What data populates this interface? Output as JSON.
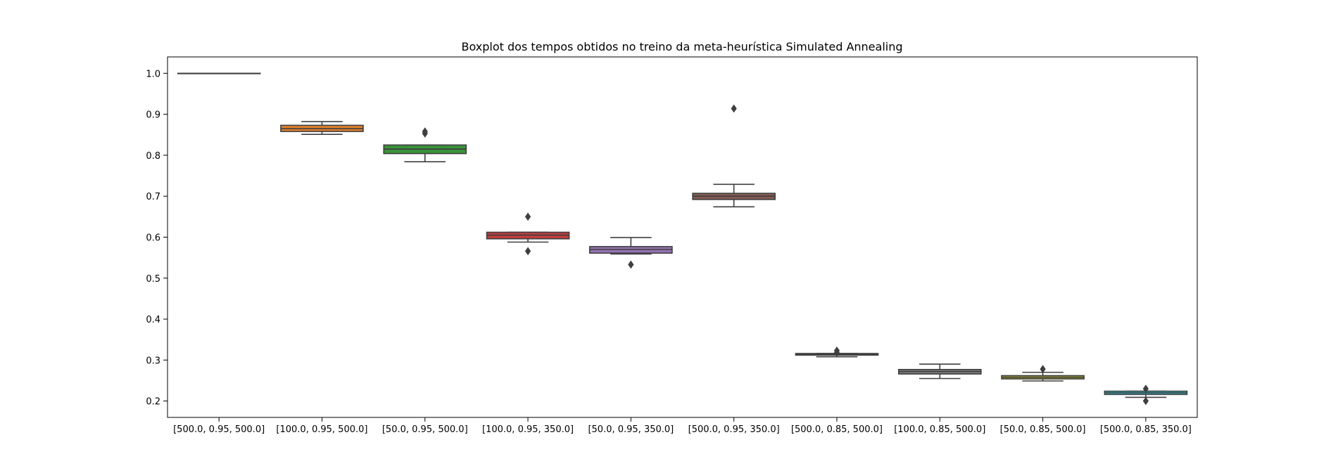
{
  "chart_data": {
    "type": "box",
    "title": "Boxplot dos tempos obtidos no treino da meta-heurística Simulated Annealing",
    "xlabel": "",
    "ylabel": "",
    "ylim": [
      0.16,
      1.04
    ],
    "yticks": [
      "0.2",
      "0.3",
      "0.4",
      "0.5",
      "0.6",
      "0.7",
      "0.8",
      "0.9",
      "1.0"
    ],
    "grid": false,
    "legend": "none",
    "categories": [
      "[500.0, 0.95, 500.0]",
      "[100.0, 0.95, 500.0]",
      "[50.0, 0.95, 500.0]",
      "[100.0, 0.95, 350.0]",
      "[50.0, 0.95, 350.0]",
      "[500.0, 0.95, 350.0]",
      "[500.0, 0.85, 500.0]",
      "[100.0, 0.85, 500.0]",
      "[50.0, 0.85, 500.0]",
      "[500.0, 0.85, 350.0]"
    ],
    "boxes": [
      {
        "min": 1.0,
        "q1": 1.0,
        "median": 1.0,
        "q3": 1.0,
        "max": 1.0,
        "outliers": [],
        "color": "#3274a1"
      },
      {
        "min": 0.851,
        "q1": 0.858,
        "median": 0.865,
        "q3": 0.873,
        "max": 0.882,
        "outliers": [],
        "color": "#e1812c"
      },
      {
        "min": 0.784,
        "q1": 0.804,
        "median": 0.815,
        "q3": 0.825,
        "max": 0.825,
        "outliers": [
          0.853,
          0.858
        ],
        "color": "#3a923a"
      },
      {
        "min": 0.588,
        "q1": 0.596,
        "median": 0.605,
        "q3": 0.612,
        "max": 0.612,
        "outliers": [
          0.65,
          0.566
        ],
        "color": "#c03d3e"
      },
      {
        "min": 0.559,
        "q1": 0.561,
        "median": 0.57,
        "q3": 0.577,
        "max": 0.599,
        "outliers": [
          0.533
        ],
        "color": "#9372b2"
      },
      {
        "min": 0.674,
        "q1": 0.692,
        "median": 0.7,
        "q3": 0.707,
        "max": 0.729,
        "outliers": [
          0.914
        ],
        "color": "#845b53"
      },
      {
        "min": 0.308,
        "q1": 0.312,
        "median": 0.314,
        "q3": 0.316,
        "max": 0.316,
        "outliers": [
          0.318,
          0.323
        ],
        "color": "#d684bd"
      },
      {
        "min": 0.255,
        "q1": 0.266,
        "median": 0.272,
        "q3": 0.277,
        "max": 0.29,
        "outliers": [],
        "color": "#7f7f7f"
      },
      {
        "min": 0.249,
        "q1": 0.254,
        "median": 0.258,
        "q3": 0.262,
        "max": 0.27,
        "outliers": [
          0.278
        ],
        "color": "#a9aa35"
      },
      {
        "min": 0.209,
        "q1": 0.216,
        "median": 0.22,
        "q3": 0.224,
        "max": 0.224,
        "outliers": [
          0.23,
          0.2
        ],
        "color": "#2ed0d9"
      }
    ]
  }
}
